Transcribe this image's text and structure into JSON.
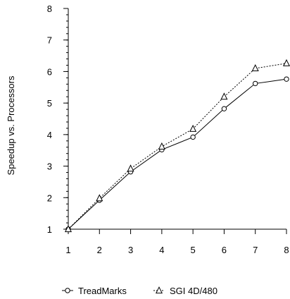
{
  "chart_data": {
    "type": "line",
    "title": "",
    "xlabel": "",
    "ylabel": "Speedup vs. Processors",
    "x": [
      1,
      2,
      3,
      4,
      5,
      6,
      7,
      8
    ],
    "xlim": [
      1,
      8
    ],
    "ylim": [
      1,
      8
    ],
    "xticks": [
      "1",
      "2",
      "3",
      "4",
      "5",
      "6",
      "7",
      "8"
    ],
    "yticks": [
      "1",
      "2",
      "3",
      "4",
      "5",
      "6",
      "7",
      "8"
    ],
    "grid": false,
    "legend_position": "bottom",
    "series": [
      {
        "name": "TreadMarks",
        "marker": "circle",
        "line_style": "solid",
        "values": [
          1.0,
          1.92,
          2.82,
          3.52,
          3.92,
          4.82,
          5.62,
          5.76
        ]
      },
      {
        "name": "SGI 4D/480",
        "marker": "triangle",
        "line_style": "dotted",
        "values": [
          1.0,
          1.98,
          2.92,
          3.62,
          4.18,
          5.2,
          6.1,
          6.26
        ]
      }
    ]
  }
}
